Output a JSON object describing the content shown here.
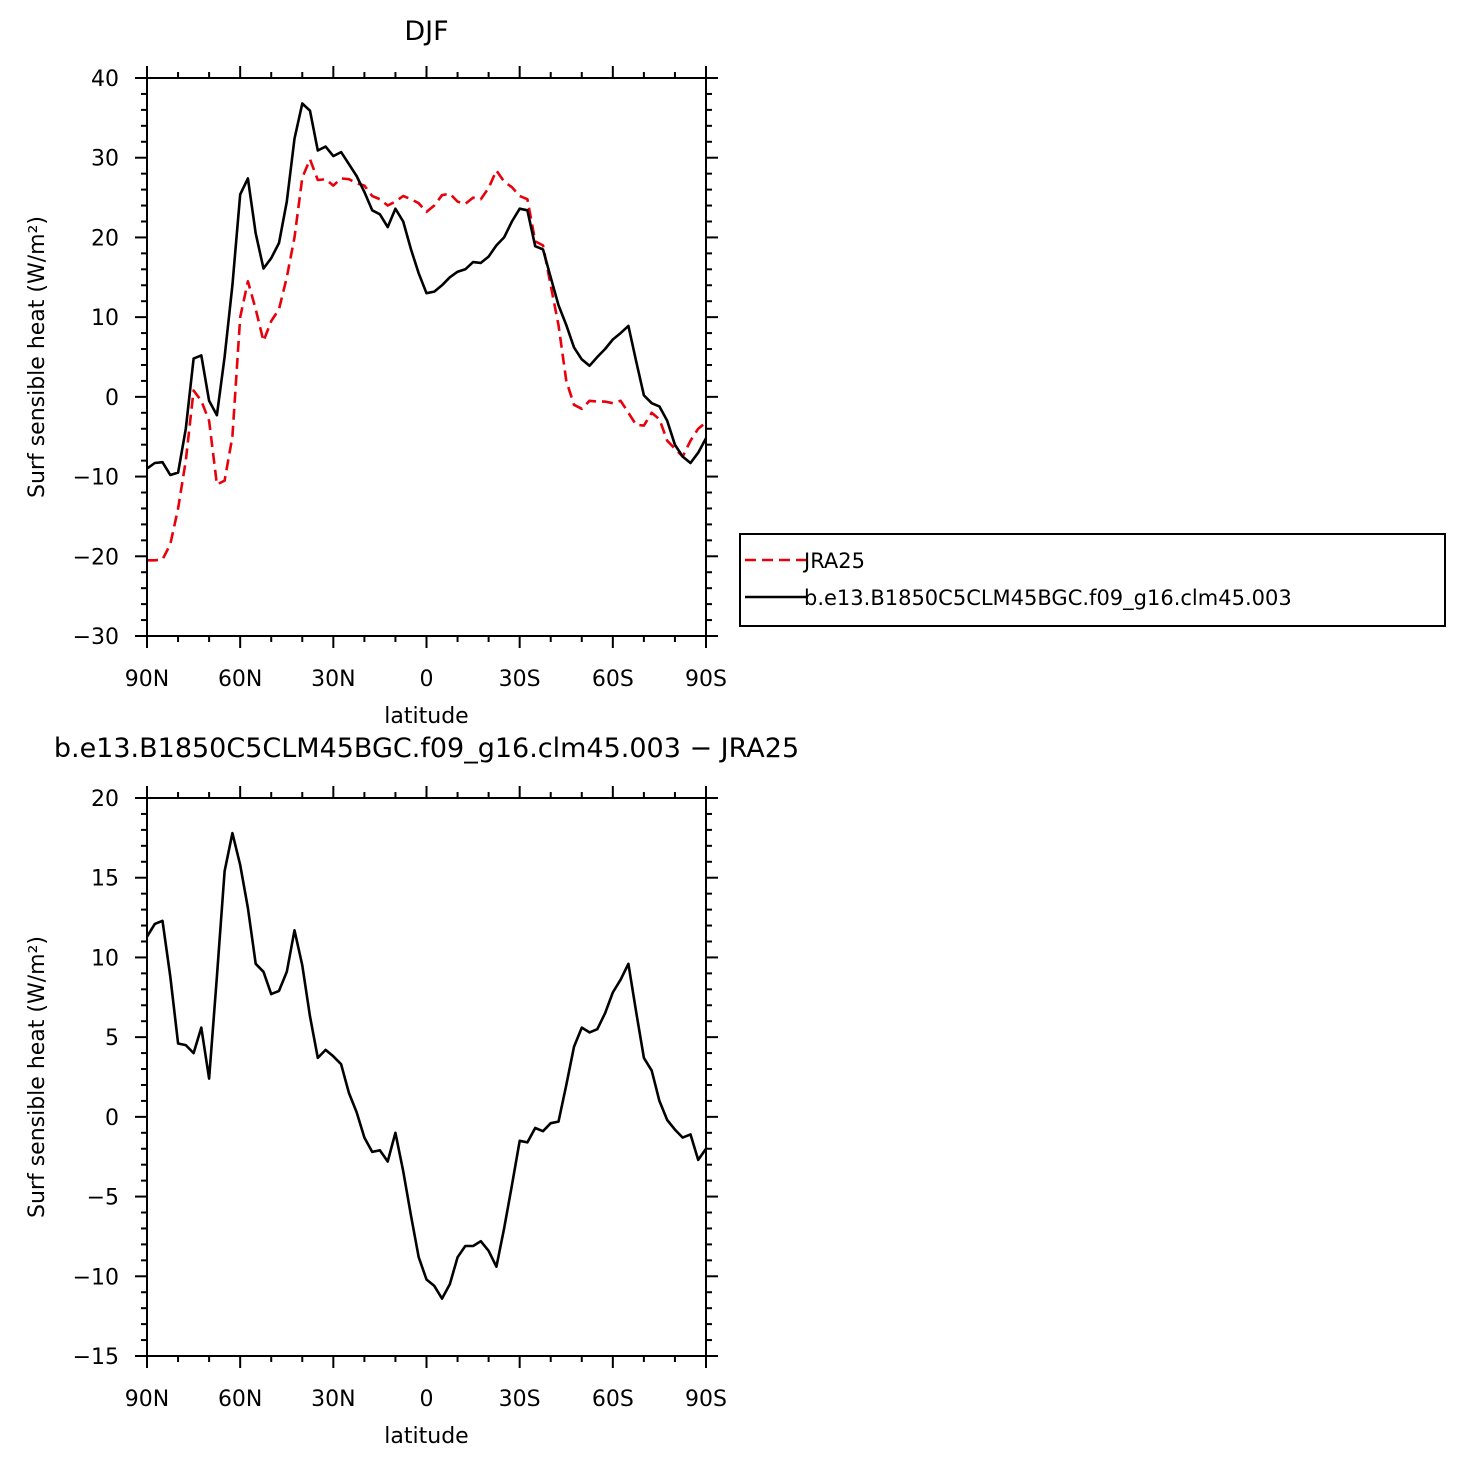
{
  "chart_data": [
    {
      "type": "line",
      "title": "DJF",
      "xlabel": "latitude",
      "ylabel": "Surf sensible heat (W/m²)",
      "xlim": [
        90,
        -90
      ],
      "ylim": [
        -30,
        40
      ],
      "xticks": [
        90,
        60,
        30,
        0,
        -30,
        -60,
        -90
      ],
      "xtick_labels": [
        "90N",
        "60N",
        "30N",
        "0",
        "30S",
        "60S",
        "90S"
      ],
      "yticks": [
        -30,
        -20,
        -10,
        0,
        10,
        20,
        30,
        40
      ],
      "ytick_labels": [
        "−30",
        "−20",
        "−10",
        "0",
        "10",
        "20",
        "30",
        "40"
      ],
      "legend": {
        "placement": "right",
        "entries": [
          "JRA25",
          "b.e13.B1850C5CLM45BGC.f09_g16.clm45.003"
        ]
      },
      "series": [
        {
          "name": "JRA25",
          "color": "#e8000b",
          "dash": true,
          "points": [
            [
              90,
              -20.5
            ],
            [
              87.5,
              -20.5
            ],
            [
              85,
              -20.4
            ],
            [
              82.5,
              -18.5
            ],
            [
              80,
              -14
            ],
            [
              77.5,
              -8
            ],
            [
              75,
              0.8
            ],
            [
              72.5,
              -0.5
            ],
            [
              70,
              -3
            ],
            [
              67.5,
              -11
            ],
            [
              65,
              -10.5
            ],
            [
              62.5,
              -5
            ],
            [
              60,
              10
            ],
            [
              57.5,
              14.5
            ],
            [
              55,
              11
            ],
            [
              52.5,
              7
            ],
            [
              50,
              9.5
            ],
            [
              47.5,
              11
            ],
            [
              45,
              15
            ],
            [
              42.5,
              20
            ],
            [
              40,
              27.5
            ],
            [
              37.5,
              29.8
            ],
            [
              35,
              27.2
            ],
            [
              32.5,
              27.3
            ],
            [
              30,
              26.5
            ],
            [
              27.5,
              27.4
            ],
            [
              25,
              27.3
            ],
            [
              22.5,
              26.8
            ],
            [
              20,
              26.5
            ],
            [
              17.5,
              25.2
            ],
            [
              15,
              24.8
            ],
            [
              12.5,
              24
            ],
            [
              10,
              24.5
            ],
            [
              7.5,
              25.2
            ],
            [
              5,
              24.8
            ],
            [
              2.5,
              24.3
            ],
            [
              0,
              23.2
            ],
            [
              -2.5,
              24
            ],
            [
              -5,
              25.3
            ],
            [
              -7.5,
              25.5
            ],
            [
              -10,
              24.5
            ],
            [
              -12.5,
              24.2
            ],
            [
              -15,
              25
            ],
            [
              -17.5,
              24.8
            ],
            [
              -20,
              26.2
            ],
            [
              -22.5,
              28.4
            ],
            [
              -25,
              27
            ],
            [
              -27.5,
              26.3
            ],
            [
              -30,
              25.2
            ],
            [
              -32.5,
              24.8
            ],
            [
              -35,
              19.5
            ],
            [
              -37.5,
              19
            ],
            [
              -40,
              14
            ],
            [
              -42.5,
              9
            ],
            [
              -45,
              2
            ],
            [
              -47.5,
              -1
            ],
            [
              -50,
              -1.5
            ],
            [
              -52.5,
              -0.5
            ],
            [
              -55,
              -0.6
            ],
            [
              -57.5,
              -0.6
            ],
            [
              -60,
              -0.8
            ],
            [
              -62.5,
              -0.5
            ],
            [
              -65,
              -2
            ],
            [
              -67.5,
              -3.5
            ],
            [
              -70,
              -3.6
            ],
            [
              -72.5,
              -2
            ],
            [
              -75,
              -2.8
            ],
            [
              -77.5,
              -5.5
            ],
            [
              -80,
              -6.5
            ],
            [
              -82.5,
              -7.5
            ],
            [
              -85,
              -5.5
            ],
            [
              -87.5,
              -4
            ],
            [
              -90,
              -3.2
            ]
          ]
        },
        {
          "name": "b.e13.B1850C5CLM45BGC.f09_g16.clm45.003",
          "color": "#000000",
          "dash": false,
          "points": [
            [
              90,
              -9
            ],
            [
              87.5,
              -8.3
            ],
            [
              85,
              -8.2
            ],
            [
              82.5,
              -9.8
            ],
            [
              80,
              -9.5
            ],
            [
              77.5,
              -4
            ],
            [
              75,
              4.8
            ],
            [
              72.5,
              5.2
            ],
            [
              70,
              -0.5
            ],
            [
              67.5,
              -2.3
            ],
            [
              65,
              5
            ],
            [
              62.5,
              14
            ],
            [
              60,
              25.4
            ],
            [
              57.5,
              27.4
            ],
            [
              55,
              20.5
            ],
            [
              52.5,
              16.1
            ],
            [
              50,
              17.4
            ],
            [
              47.5,
              19.3
            ],
            [
              45,
              24.5
            ],
            [
              42.5,
              32.4
            ],
            [
              40,
              36.8
            ],
            [
              37.5,
              35.9
            ],
            [
              35,
              30.9
            ],
            [
              32.5,
              31.4
            ],
            [
              30,
              30.2
            ],
            [
              27.5,
              30.7
            ],
            [
              25,
              29.2
            ],
            [
              22.5,
              27.7
            ],
            [
              20,
              25.7
            ],
            [
              17.5,
              23.4
            ],
            [
              15,
              22.9
            ],
            [
              12.5,
              21.3
            ],
            [
              10,
              23.6
            ],
            [
              7.5,
              22
            ],
            [
              5,
              18.5
            ],
            [
              2.5,
              15.5
            ],
            [
              0,
              13
            ],
            [
              -2.5,
              13.2
            ],
            [
              -5,
              14
            ],
            [
              -7.5,
              15
            ],
            [
              -10,
              15.7
            ],
            [
              -12.5,
              16
            ],
            [
              -15,
              16.9
            ],
            [
              -17.5,
              16.8
            ],
            [
              -20,
              17.6
            ],
            [
              -22.5,
              19
            ],
            [
              -25,
              20
            ],
            [
              -27.5,
              22
            ],
            [
              -30,
              23.6
            ],
            [
              -32.5,
              23.4
            ],
            [
              -35,
              18.9
            ],
            [
              -37.5,
              18.5
            ],
            [
              -40,
              15
            ],
            [
              -42.5,
              11.5
            ],
            [
              -45,
              9
            ],
            [
              -47.5,
              6.2
            ],
            [
              -50,
              4.7
            ],
            [
              -52.5,
              3.9
            ],
            [
              -55,
              5
            ],
            [
              -57.5,
              6
            ],
            [
              -60,
              7.2
            ],
            [
              -62.5,
              8
            ],
            [
              -65,
              8.9
            ],
            [
              -67.5,
              4.5
            ],
            [
              -70,
              0.2
            ],
            [
              -72.5,
              -0.8
            ],
            [
              -75,
              -1.2
            ],
            [
              -77.5,
              -3
            ],
            [
              -80,
              -6
            ],
            [
              -82.5,
              -7.5
            ],
            [
              -85,
              -8.3
            ],
            [
              -87.5,
              -7
            ],
            [
              -90,
              -5.2
            ]
          ]
        }
      ]
    },
    {
      "type": "line",
      "title": "b.e13.B1850C5CLM45BGC.f09_g16.clm45.003 − JRA25",
      "xlabel": "latitude",
      "ylabel": "Surf sensible heat (W/m²)",
      "xlim": [
        90,
        -90
      ],
      "ylim": [
        -15,
        20
      ],
      "xticks": [
        90,
        60,
        30,
        0,
        -30,
        -60,
        -90
      ],
      "xtick_labels": [
        "90N",
        "60N",
        "30N",
        "0",
        "30S",
        "60S",
        "90S"
      ],
      "yticks": [
        -15,
        -10,
        -5,
        0,
        5,
        10,
        15,
        20
      ],
      "ytick_labels": [
        "−15",
        "−10",
        "−5",
        "0",
        "5",
        "10",
        "15",
        "20"
      ],
      "series": [
        {
          "color": "#000000",
          "dash": false,
          "points": [
            [
              90,
              11.3
            ],
            [
              87.5,
              12.1
            ],
            [
              85,
              12.3
            ],
            [
              82.5,
              8.8
            ],
            [
              80,
              4.6
            ],
            [
              77.5,
              4.5
            ],
            [
              75,
              4
            ],
            [
              72.5,
              5.6
            ],
            [
              70,
              2.4
            ],
            [
              67.5,
              8.8
            ],
            [
              65,
              15.4
            ],
            [
              62.5,
              17.8
            ],
            [
              60,
              15.8
            ],
            [
              57.5,
              13.1
            ],
            [
              55,
              9.6
            ],
            [
              52.5,
              9.1
            ],
            [
              50,
              7.7
            ],
            [
              47.5,
              7.9
            ],
            [
              45,
              9.1
            ],
            [
              42.5,
              11.7
            ],
            [
              40,
              9.5
            ],
            [
              37.5,
              6.3
            ],
            [
              35,
              3.7
            ],
            [
              32.5,
              4.2
            ],
            [
              30,
              3.8
            ],
            [
              27.5,
              3.3
            ],
            [
              25,
              1.5
            ],
            [
              22.5,
              0.3
            ],
            [
              20,
              -1.3
            ],
            [
              17.5,
              -2.2
            ],
            [
              15,
              -2.1
            ],
            [
              12.5,
              -2.8
            ],
            [
              10,
              -1
            ],
            [
              7.5,
              -3.4
            ],
            [
              5,
              -6.2
            ],
            [
              2.5,
              -8.8
            ],
            [
              0,
              -10.2
            ],
            [
              -2.5,
              -10.6
            ],
            [
              -5,
              -11.4
            ],
            [
              -7.5,
              -10.5
            ],
            [
              -10,
              -8.8
            ],
            [
              -12.5,
              -8.1
            ],
            [
              -15,
              -8.1
            ],
            [
              -17.5,
              -7.8
            ],
            [
              -20,
              -8.4
            ],
            [
              -22.5,
              -9.4
            ],
            [
              -25,
              -7
            ],
            [
              -27.5,
              -4.3
            ],
            [
              -30,
              -1.5
            ],
            [
              -32.5,
              -1.6
            ],
            [
              -35,
              -0.7
            ],
            [
              -37.5,
              -0.9
            ],
            [
              -40,
              -0.4
            ],
            [
              -42.5,
              -0.3
            ],
            [
              -45,
              2
            ],
            [
              -47.5,
              4.4
            ],
            [
              -50,
              5.6
            ],
            [
              -52.5,
              5.3
            ],
            [
              -55,
              5.5
            ],
            [
              -57.5,
              6.5
            ],
            [
              -60,
              7.8
            ],
            [
              -62.5,
              8.6
            ],
            [
              -65,
              9.6
            ],
            [
              -67.5,
              6.6
            ],
            [
              -70,
              3.7
            ],
            [
              -72.5,
              2.9
            ],
            [
              -75,
              1
            ],
            [
              -77.5,
              -0.2
            ],
            [
              -80,
              -0.8
            ],
            [
              -82.5,
              -1.3
            ],
            [
              -85,
              -1.1
            ],
            [
              -87.5,
              -2.7
            ],
            [
              -90,
              -2
            ]
          ]
        }
      ]
    }
  ]
}
